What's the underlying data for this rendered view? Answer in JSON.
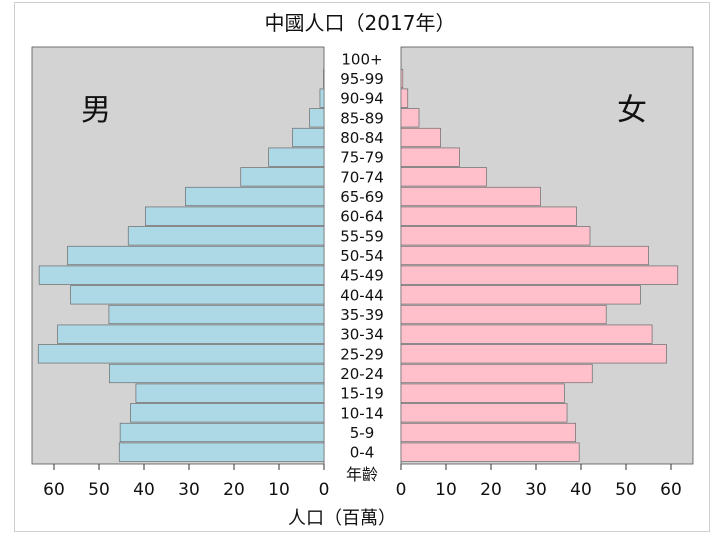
{
  "chart_data": {
    "type": "bar",
    "title": "中國人口（2017年）",
    "xlabel": "人口（百萬）",
    "age_axis_label": "年齡",
    "grid": false,
    "male": {
      "name": "男",
      "color": "#add8e6",
      "xlim": [
        0,
        65
      ],
      "ticks": [
        0,
        10,
        20,
        30,
        40,
        50,
        60
      ],
      "values": [
        45.5,
        45.3,
        43.0,
        41.8,
        47.7,
        63.5,
        59.2,
        47.8,
        56.3,
        63.3,
        57.0,
        43.5,
        39.7,
        30.8,
        18.5,
        12.3,
        7.0,
        3.2,
        0.9,
        0.1,
        0.0
      ]
    },
    "female": {
      "name": "女",
      "color": "#ffc0cb",
      "xlim": [
        0,
        65
      ],
      "ticks": [
        0,
        10,
        20,
        30,
        40,
        50,
        60
      ],
      "values": [
        39.6,
        38.8,
        36.9,
        36.3,
        42.5,
        59.0,
        55.8,
        45.6,
        53.2,
        61.5,
        55.0,
        42.0,
        39.0,
        31.0,
        19.0,
        13.0,
        8.8,
        4.0,
        1.5,
        0.4,
        0.0
      ]
    },
    "categories": [
      "0-4",
      "5-9",
      "10-14",
      "15-19",
      "20-24",
      "25-29",
      "30-34",
      "35-39",
      "40-44",
      "45-49",
      "50-54",
      "55-59",
      "60-64",
      "65-69",
      "70-74",
      "75-79",
      "80-84",
      "85-89",
      "90-94",
      "95-99",
      "100+"
    ]
  }
}
